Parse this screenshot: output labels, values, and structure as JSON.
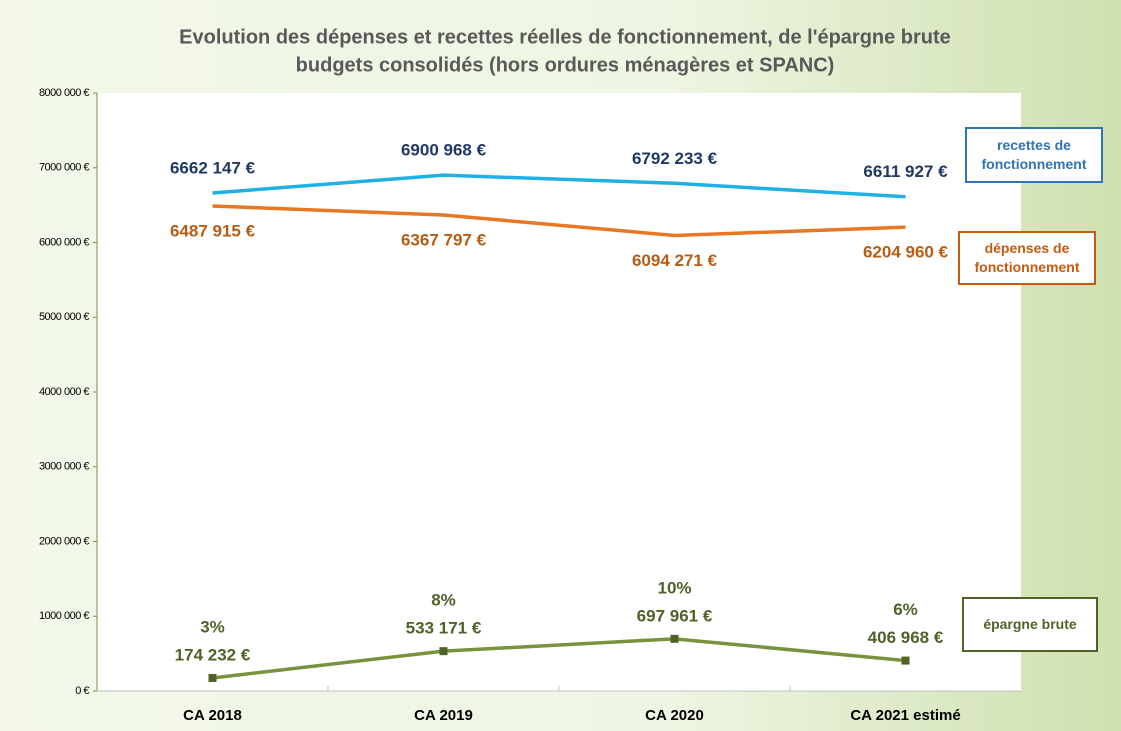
{
  "chart_data": {
    "type": "line",
    "title": "Evolution des dépenses et recettes réelles de fonctionnement, de l'épargne brute",
    "subtitle": "budgets consolidés (hors ordures ménagères et SPANC)",
    "categories": [
      "CA 2018",
      "CA 2019",
      "CA 2020",
      "CA 2021 estimé"
    ],
    "ylim": [
      0,
      8000000
    ],
    "yticks": [
      {
        "value": 0,
        "label": "0 €"
      },
      {
        "value": 1000000,
        "label": "1000 000 €"
      },
      {
        "value": 2000000,
        "label": "2000 000 €"
      },
      {
        "value": 3000000,
        "label": "3000 000 €"
      },
      {
        "value": 4000000,
        "label": "4000 000 €"
      },
      {
        "value": 5000000,
        "label": "5000 000 €"
      },
      {
        "value": 6000000,
        "label": "6000 000 €"
      },
      {
        "value": 7000000,
        "label": "7000 000 €"
      },
      {
        "value": 8000000,
        "label": "8000 000 €"
      }
    ],
    "series": [
      {
        "name": "recettes de fonctionnement",
        "color": "#1fb1e6",
        "label_color": "#1f3864",
        "legend_color": "#2e75b6",
        "values": [
          6662147,
          6900968,
          6792233,
          6611927
        ],
        "value_labels": [
          "6662 147 €",
          "6900 968 €",
          "6792 233 €",
          "6611 927 €"
        ]
      },
      {
        "name": "dépenses de fonctionnement",
        "color": "#e87722",
        "label_color": "#b85c14",
        "legend_color": "#c55a11",
        "values": [
          6487915,
          6367797,
          6094271,
          6204960
        ],
        "value_labels": [
          "6487 915 €",
          "6367 797 €",
          "6094 271 €",
          "6204 960 €"
        ]
      },
      {
        "name": "épargne brute",
        "color": "#77933c",
        "label_color": "#4f6228",
        "legend_color": "#4f6228",
        "values": [
          174232,
          533171,
          697961,
          406968
        ],
        "value_labels": [
          "174 232 €",
          "533 171 €",
          "697 961 €",
          "406 968 €"
        ],
        "ratio_labels": [
          "3%",
          "8%",
          "10%",
          "6%"
        ]
      }
    ]
  }
}
